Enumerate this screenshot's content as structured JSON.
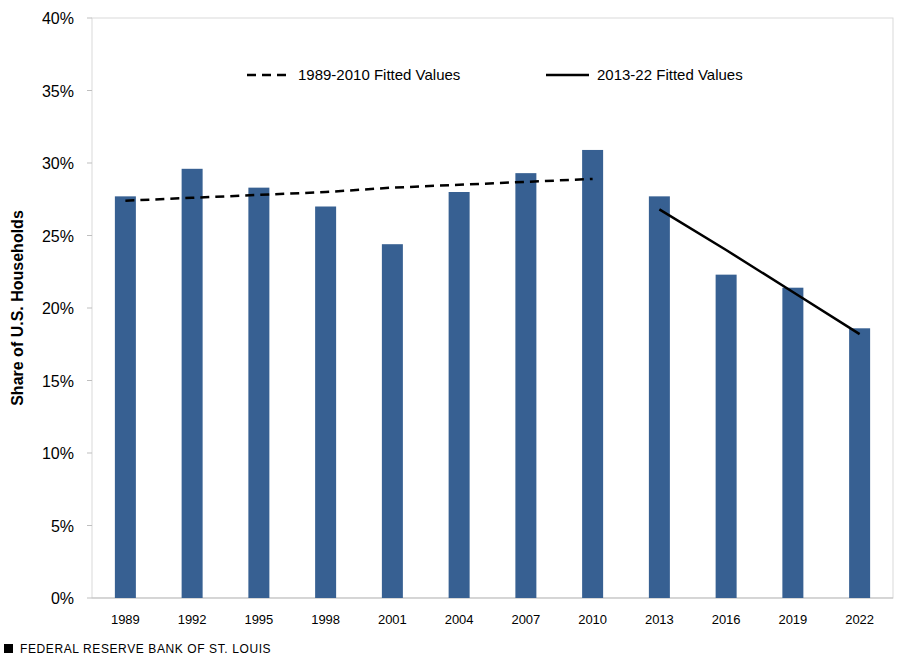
{
  "chart_data": {
    "type": "bar",
    "y_label": "Share of U.S. Households",
    "source": "FEDERAL RESERVE BANK OF ST. LOUIS",
    "categories": [
      "1989",
      "1992",
      "1995",
      "1998",
      "2001",
      "2004",
      "2007",
      "2010",
      "2013",
      "2016",
      "2019",
      "2022"
    ],
    "values": [
      27.7,
      29.6,
      28.3,
      27.0,
      24.4,
      28.0,
      29.3,
      30.9,
      27.7,
      22.3,
      21.4,
      18.6
    ],
    "color": "#376092",
    "series": [
      {
        "name": "1989-2010 Fitted Values",
        "type": "line",
        "line_style": "dashed",
        "color": "#000000",
        "values": [
          27.4,
          27.6,
          27.8,
          28.0,
          28.3,
          28.5,
          28.7,
          28.9,
          null,
          null,
          null,
          null
        ]
      },
      {
        "name": "2013-22 Fitted Values",
        "type": "line",
        "line_style": "solid",
        "color": "#000000",
        "values": [
          null,
          null,
          null,
          null,
          null,
          null,
          null,
          null,
          26.8,
          24.0,
          21.1,
          18.2
        ]
      }
    ],
    "ylim": [
      0,
      40
    ],
    "yticks": [
      {
        "value": 0,
        "label": "0%"
      },
      {
        "value": 5,
        "label": "5%"
      },
      {
        "value": 10,
        "label": "10%"
      },
      {
        "value": 15,
        "label": "15%"
      },
      {
        "value": 20,
        "label": "20%"
      },
      {
        "value": 25,
        "label": "25%"
      },
      {
        "value": 30,
        "label": "30%"
      },
      {
        "value": 35,
        "label": "35%"
      },
      {
        "value": 40,
        "label": "40%"
      }
    ],
    "grid": false,
    "legend": "top"
  }
}
